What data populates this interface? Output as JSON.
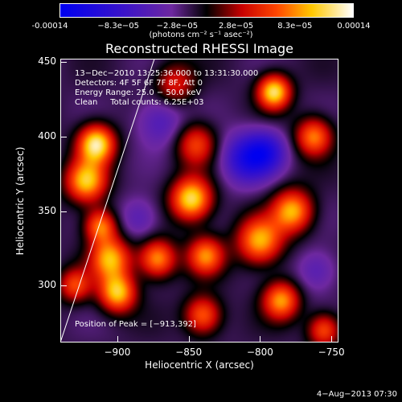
{
  "colorbar": {
    "ticks": [
      "-0.00014",
      "−8.3e−05",
      "−2.8e−05",
      "2.8e−05",
      "8.3e−05",
      "0.00014"
    ],
    "unit_label": "(photons cm⁻² s⁻¹ asec⁻²)"
  },
  "chart_data": {
    "type": "heatmap",
    "title": "Reconstructed RHESSI Image",
    "xlabel": "Heliocentric X (arcsec)",
    "ylabel": "Heliocentric Y (arcsec)",
    "xlim": [
      -940,
      -745
    ],
    "ylim": [
      262,
      452
    ],
    "x_ticks": [
      "−900",
      "−850",
      "−800",
      "−750"
    ],
    "x_tick_values": [
      -900,
      -850,
      -800,
      -750
    ],
    "y_ticks": [
      "300",
      "350",
      "400",
      "450"
    ],
    "y_tick_values": [
      300,
      350,
      400,
      450
    ],
    "color_range": [
      -0.00014,
      0.00014
    ],
    "colormap": "blue-purple-red-yellow-white",
    "limb_line": [
      [
        -940,
        262
      ],
      [
        -874,
        452
      ]
    ],
    "peak_position": [
      -913,
      392
    ],
    "blobs": [
      {
        "x": -915,
        "y": 395,
        "v": 1.0,
        "s": 9
      },
      {
        "x": -922,
        "y": 370,
        "v": 0.85,
        "s": 10
      },
      {
        "x": -912,
        "y": 340,
        "v": 0.7,
        "s": 8
      },
      {
        "x": -905,
        "y": 318,
        "v": 0.8,
        "s": 10
      },
      {
        "x": -900,
        "y": 295,
        "v": 0.85,
        "s": 9
      },
      {
        "x": -872,
        "y": 318,
        "v": 0.75,
        "s": 9
      },
      {
        "x": -848,
        "y": 358,
        "v": 0.95,
        "s": 10
      },
      {
        "x": -838,
        "y": 320,
        "v": 0.7,
        "s": 9
      },
      {
        "x": -845,
        "y": 395,
        "v": 0.55,
        "s": 10
      },
      {
        "x": -800,
        "y": 330,
        "v": 0.8,
        "s": 11
      },
      {
        "x": -785,
        "y": 290,
        "v": 0.75,
        "s": 9
      },
      {
        "x": -777,
        "y": 350,
        "v": 0.8,
        "s": 10
      },
      {
        "x": -790,
        "y": 430,
        "v": 0.95,
        "s": 8
      },
      {
        "x": -762,
        "y": 400,
        "v": 0.7,
        "s": 9
      },
      {
        "x": -860,
        "y": 435,
        "v": 0.45,
        "s": 10
      },
      {
        "x": -930,
        "y": 300,
        "v": 0.55,
        "s": 8
      },
      {
        "x": -840,
        "y": 280,
        "v": 0.65,
        "s": 9
      },
      {
        "x": -810,
        "y": 385,
        "v": -0.6,
        "s": 12
      },
      {
        "x": -795,
        "y": 390,
        "v": -0.5,
        "s": 10
      },
      {
        "x": -870,
        "y": 410,
        "v": -0.35,
        "s": 12
      },
      {
        "x": -885,
        "y": 345,
        "v": -0.3,
        "s": 10
      },
      {
        "x": -760,
        "y": 310,
        "v": -0.3,
        "s": 10
      },
      {
        "x": -755,
        "y": 270,
        "v": 0.6,
        "s": 8
      }
    ]
  },
  "info": {
    "time_range": "13−Dec−2010 13:25:36.000 to 13:31:30.000",
    "detectors": "Detectors: 4F 5F 6F 7F 8F, Att 0",
    "energy_range": "Energy Range: 25.0 − 50.0 keV",
    "method": "Clean     Total counts: 6.25E+03",
    "peak": "Position of Peak = [−913,392]"
  },
  "footer": "4−Aug−2013 07:30"
}
